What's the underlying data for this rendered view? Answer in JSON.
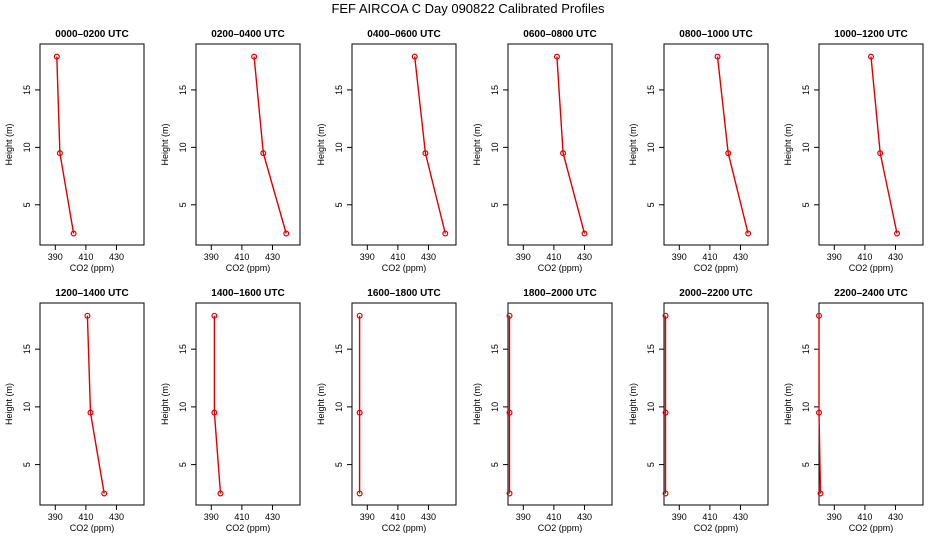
{
  "title": "FEF AIRCOA C  Day 090822  Calibrated Profiles",
  "colors": {
    "series": "#dd0000",
    "axis": "#000000"
  },
  "chart_data": [
    {
      "type": "line",
      "title": "0000–0200 UTC",
      "xlabel": "CO2 (ppm)",
      "ylabel": "Height (m)",
      "xlim": [
        380,
        448
      ],
      "ylim": [
        1.5,
        19.0
      ],
      "xticks": [
        390,
        410,
        430
      ],
      "yticks": [
        5,
        10,
        15
      ],
      "x": [
        391,
        393,
        402
      ],
      "y": [
        17.9,
        9.5,
        2.5
      ]
    },
    {
      "type": "line",
      "title": "0200–0400 UTC",
      "xlabel": "CO2 (ppm)",
      "ylabel": "Height (m)",
      "xlim": [
        380,
        448
      ],
      "ylim": [
        1.5,
        19.0
      ],
      "xticks": [
        390,
        410,
        430
      ],
      "yticks": [
        5,
        10,
        15
      ],
      "x": [
        418,
        424,
        439
      ],
      "y": [
        17.9,
        9.5,
        2.5
      ]
    },
    {
      "type": "line",
      "title": "0400–0600 UTC",
      "xlabel": "CO2 (ppm)",
      "ylabel": "Height (m)",
      "xlim": [
        380,
        448
      ],
      "ylim": [
        1.5,
        19.0
      ],
      "xticks": [
        390,
        410,
        430
      ],
      "yticks": [
        5,
        10,
        15
      ],
      "x": [
        421,
        428,
        441
      ],
      "y": [
        17.9,
        9.5,
        2.5
      ]
    },
    {
      "type": "line",
      "title": "0600–0800 UTC",
      "xlabel": "CO2 (ppm)",
      "ylabel": "Height (m)",
      "xlim": [
        380,
        448
      ],
      "ylim": [
        1.5,
        19.0
      ],
      "xticks": [
        390,
        410,
        430
      ],
      "yticks": [
        5,
        10,
        15
      ],
      "x": [
        412,
        416,
        430
      ],
      "y": [
        17.9,
        9.5,
        2.5
      ]
    },
    {
      "type": "line",
      "title": "0800–1000 UTC",
      "xlabel": "CO2 (ppm)",
      "ylabel": "Height (m)",
      "xlim": [
        380,
        448
      ],
      "ylim": [
        1.5,
        19.0
      ],
      "xticks": [
        390,
        410,
        430
      ],
      "yticks": [
        5,
        10,
        15
      ],
      "x": [
        415,
        422,
        435
      ],
      "y": [
        17.9,
        9.5,
        2.5
      ]
    },
    {
      "type": "line",
      "title": "1000–1200 UTC",
      "xlabel": "CO2 (ppm)",
      "ylabel": "Height (m)",
      "xlim": [
        380,
        448
      ],
      "ylim": [
        1.5,
        19.0
      ],
      "xticks": [
        390,
        410,
        430
      ],
      "yticks": [
        5,
        10,
        15
      ],
      "x": [
        414,
        420,
        431
      ],
      "y": [
        17.9,
        9.5,
        2.5
      ]
    },
    {
      "type": "line",
      "title": "1200–1400 UTC",
      "xlabel": "CO2 (ppm)",
      "ylabel": "Height (m)",
      "xlim": [
        380,
        448
      ],
      "ylim": [
        1.5,
        19.0
      ],
      "xticks": [
        390,
        410,
        430
      ],
      "yticks": [
        5,
        10,
        15
      ],
      "x": [
        411,
        413,
        422
      ],
      "y": [
        17.9,
        9.5,
        2.5
      ]
    },
    {
      "type": "line",
      "title": "1400–1600 UTC",
      "xlabel": "CO2 (ppm)",
      "ylabel": "Height (m)",
      "xlim": [
        380,
        448
      ],
      "ylim": [
        1.5,
        19.0
      ],
      "xticks": [
        390,
        410,
        430
      ],
      "yticks": [
        5,
        10,
        15
      ],
      "x": [
        392,
        392,
        396
      ],
      "y": [
        17.9,
        9.5,
        2.5
      ]
    },
    {
      "type": "line",
      "title": "1600–1800 UTC",
      "xlabel": "CO2 (ppm)",
      "ylabel": "Height (m)",
      "xlim": [
        380,
        448
      ],
      "ylim": [
        1.5,
        19.0
      ],
      "xticks": [
        390,
        410,
        430
      ],
      "yticks": [
        5,
        10,
        15
      ],
      "x": [
        385,
        385,
        385
      ],
      "y": [
        17.9,
        9.5,
        2.5
      ]
    },
    {
      "type": "line",
      "title": "1800–2000 UTC",
      "xlabel": "CO2 (ppm)",
      "ylabel": "Height (m)",
      "xlim": [
        380,
        448
      ],
      "ylim": [
        1.5,
        19.0
      ],
      "xticks": [
        390,
        410,
        430
      ],
      "yticks": [
        5,
        10,
        15
      ],
      "x": [
        381,
        381,
        381
      ],
      "y": [
        17.9,
        9.5,
        2.5
      ]
    },
    {
      "type": "line",
      "title": "2000–2200 UTC",
      "xlabel": "CO2 (ppm)",
      "ylabel": "Height (m)",
      "xlim": [
        380,
        448
      ],
      "ylim": [
        1.5,
        19.0
      ],
      "xticks": [
        390,
        410,
        430
      ],
      "yticks": [
        5,
        10,
        15
      ],
      "x": [
        381,
        381,
        381
      ],
      "y": [
        17.9,
        9.5,
        2.5
      ]
    },
    {
      "type": "line",
      "title": "2200–2400 UTC",
      "xlabel": "CO2 (ppm)",
      "ylabel": "Height (m)",
      "xlim": [
        380,
        448
      ],
      "ylim": [
        1.5,
        19.0
      ],
      "xticks": [
        390,
        410,
        430
      ],
      "yticks": [
        5,
        10,
        15
      ],
      "x": [
        380,
        380,
        381
      ],
      "y": [
        17.9,
        9.5,
        2.5
      ]
    }
  ]
}
